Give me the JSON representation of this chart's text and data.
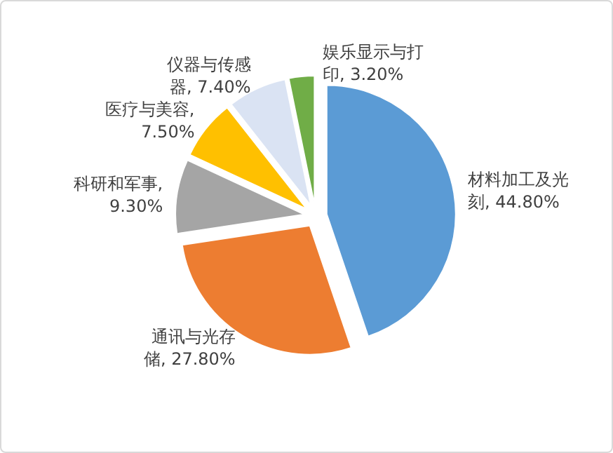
{
  "chart_data": {
    "type": "pie",
    "categories": [
      "材料加工及光刻",
      "通讯与光存储",
      "科研和军事",
      "医疗与美容",
      "仪器与传感器",
      "娱乐显示与打印"
    ],
    "values": [
      44.8,
      27.8,
      9.3,
      7.5,
      7.4,
      3.2
    ],
    "value_labels": [
      ", 44.80%",
      ", 27.80%",
      ", 9.30%",
      ", 7.50%",
      ", 7.40%",
      ", 3.20%"
    ],
    "colors": [
      "#5b9bd5",
      "#ed7d31",
      "#a5a5a5",
      "#ffc000",
      "#dae3f3",
      "#70ad47"
    ],
    "legend": false
  }
}
